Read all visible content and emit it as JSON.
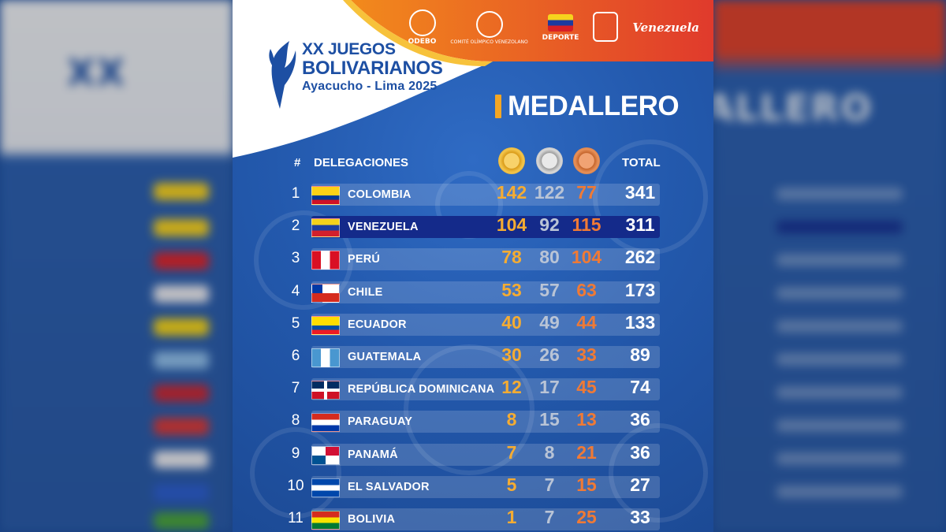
{
  "colors": {
    "gold": "#f5ac32",
    "silver": "#b9c4d6",
    "bronze": "#f07a35",
    "highlight": "#142a8a",
    "background": "#2359ad",
    "header_band": "#e24b2d"
  },
  "header_logos": {
    "odebo": "ODEBO",
    "coc": "COMITÉ OLÍMPICO VENEZOLANO",
    "deporte": "DEPORTE",
    "venezuela": "Venezuela"
  },
  "brand": {
    "line1": "XX JUEGOS",
    "line2": "BOLIVARIANOS",
    "line3": "Ayacucho - Lima 2025"
  },
  "title": "MEDALLERO",
  "table_header": {
    "rank": "#",
    "delegation": "DELEGACIONES",
    "total": "TOTAL",
    "medal_icons": [
      "gold-medal-icon",
      "silver-medal-icon",
      "bronze-medal-icon"
    ]
  },
  "rows": [
    {
      "rank": "1",
      "name": "COLOMBIA",
      "gold": "142",
      "silver": "122",
      "bronze": "77",
      "total": "341",
      "flag": "colombia-flag-icon"
    },
    {
      "rank": "2",
      "name": "VENEZUELA",
      "gold": "104",
      "silver": "92",
      "bronze": "115",
      "total": "311",
      "flag": "venezuela-flag-icon"
    },
    {
      "rank": "3",
      "name": "PERÚ",
      "gold": "78",
      "silver": "80",
      "bronze": "104",
      "total": "262",
      "flag": "peru-flag-icon"
    },
    {
      "rank": "4",
      "name": "CHILE",
      "gold": "53",
      "silver": "57",
      "bronze": "63",
      "total": "173",
      "flag": "chile-flag-icon"
    },
    {
      "rank": "5",
      "name": "ECUADOR",
      "gold": "40",
      "silver": "49",
      "bronze": "44",
      "total": "133",
      "flag": "ecuador-flag-icon"
    },
    {
      "rank": "6",
      "name": "GUATEMALA",
      "gold": "30",
      "silver": "26",
      "bronze": "33",
      "total": "89",
      "flag": "guatemala-flag-icon"
    },
    {
      "rank": "7",
      "name": "REPÚBLICA DOMINICANA",
      "gold": "12",
      "silver": "17",
      "bronze": "45",
      "total": "74",
      "flag": "dominican-republic-flag-icon"
    },
    {
      "rank": "8",
      "name": "PARAGUAY",
      "gold": "8",
      "silver": "15",
      "bronze": "13",
      "total": "36",
      "flag": "paraguay-flag-icon"
    },
    {
      "rank": "9",
      "name": "PANAMÁ",
      "gold": "7",
      "silver": "8",
      "bronze": "21",
      "total": "36",
      "flag": "panama-flag-icon"
    },
    {
      "rank": "10",
      "name": "EL SALVADOR",
      "gold": "5",
      "silver": "7",
      "bronze": "15",
      "total": "27",
      "flag": "el-salvador-flag-icon"
    },
    {
      "rank": "11",
      "name": "BOLIVIA",
      "gold": "1",
      "silver": "7",
      "bronze": "25",
      "total": "33",
      "flag": "bolivia-flag-icon"
    }
  ]
}
